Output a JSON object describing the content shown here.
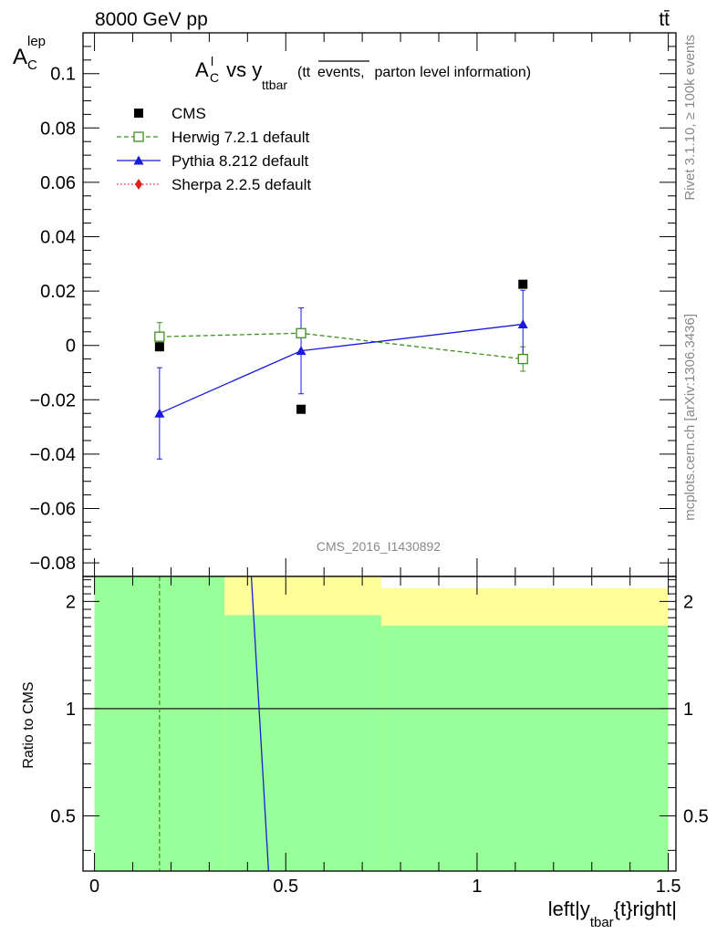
{
  "header": {
    "left": "8000 GeV pp",
    "right": "tt̄"
  },
  "side_labels": {
    "top": "Rivet 3.1.10, ≥ 100k events",
    "bottom": "mcplots.cern.ch [arXiv:1306.3436]"
  },
  "watermark": "CMS_2016_I1430892",
  "chart_data": [
    {
      "type": "scatter",
      "title": {
        "main": "A",
        "main_sup": "l",
        "main_sub": "C",
        "mid": " vs y",
        "mid_sub": "ttbar",
        "paren_open": "(tt",
        "overlined": "events,",
        "paren_rest": " parton level information)"
      },
      "ylabel": {
        "main": "A",
        "sub": "C",
        "sup": "lep"
      },
      "ylim": [
        -0.085,
        0.115
      ],
      "xlim": [
        -0.03,
        1.52
      ],
      "yticks": [
        {
          "value": -0.08,
          "label": "−0.08"
        },
        {
          "value": -0.06,
          "label": "−0.06"
        },
        {
          "value": -0.04,
          "label": "−0.04"
        },
        {
          "value": -0.02,
          "label": "−0.02"
        },
        {
          "value": 0,
          "label": "0"
        },
        {
          "value": 0.02,
          "label": "0.02"
        },
        {
          "value": 0.04,
          "label": "0.04"
        },
        {
          "value": 0.06,
          "label": "0.06"
        },
        {
          "value": 0.08,
          "label": "0.08"
        },
        {
          "value": 0.1,
          "label": "0.1"
        }
      ],
      "legend_position": "top-left",
      "series": [
        {
          "name": "CMS",
          "color": "#000000",
          "marker": "filled-square",
          "line": "none",
          "x": [
            0.17,
            0.54,
            1.12
          ],
          "y": [
            -0.0005,
            -0.0235,
            0.0225
          ]
        },
        {
          "name": "Herwig 7.2.1 default",
          "color": "#3f8f1f",
          "marker": "open-square",
          "line": "dashed",
          "x": [
            0.17,
            0.54,
            1.12
          ],
          "y": [
            0.0032,
            0.0045,
            -0.005
          ],
          "yerr": [
            0.0052,
            0.001,
            0.0045
          ]
        },
        {
          "name": "Pythia 8.212 default",
          "color": "#1a1adc",
          "marker": "filled-triangle",
          "line": "solid",
          "x": [
            0.17,
            0.54,
            1.12
          ],
          "y": [
            -0.025,
            -0.002,
            0.0078
          ],
          "yerr": [
            0.0168,
            0.0158,
            0.0125
          ]
        },
        {
          "name": "Sherpa 2.2.5 default",
          "color": "#e02020",
          "marker": "filled-diamond",
          "line": "dotted",
          "x": [],
          "y": []
        }
      ]
    },
    {
      "type": "line",
      "ylabel": "Ratio to CMS",
      "xlabel": {
        "pre": "left|y",
        "sub": "tbar",
        "post": "{t}right|"
      },
      "ylim": [
        0.35,
        2.35
      ],
      "xlim": [
        -0.03,
        1.52
      ],
      "xticks": [
        {
          "value": 0,
          "label": "0"
        },
        {
          "value": 0.5,
          "label": "0.5"
        },
        {
          "value": 1,
          "label": "1"
        },
        {
          "value": 1.5,
          "label": "1.5"
        }
      ],
      "yticks": [
        {
          "value": 0.5,
          "label": "0.5"
        },
        {
          "value": 1,
          "label": "1"
        },
        {
          "value": 2,
          "label": "2"
        }
      ],
      "bands": {
        "yellow_color": "#ffff99",
        "green_color": "#99ff99",
        "bins": [
          {
            "x0": 0,
            "x1": 0.34,
            "yellow": [
              0.35,
              2.35
            ],
            "green": [
              0.35,
              2.35
            ]
          },
          {
            "x0": 0.34,
            "x1": 0.75,
            "yellow": [
              0.35,
              2.35
            ],
            "green": [
              0.35,
              1.83
            ]
          },
          {
            "x0": 0.75,
            "x1": 1.5,
            "yellow": [
              0.35,
              2.18
            ],
            "green": [
              0.35,
              1.71
            ]
          }
        ]
      },
      "reference": 1,
      "herwig_ratio_x": 0.17,
      "pythia_ratio_segment": {
        "x": [
          0.41,
          0.455
        ],
        "y": [
          2.35,
          0.35
        ]
      }
    }
  ]
}
